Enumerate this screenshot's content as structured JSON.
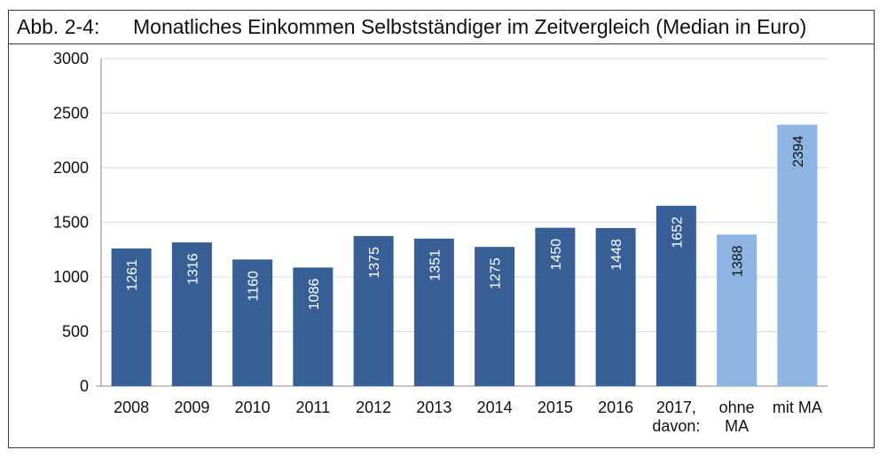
{
  "title_number": "Abb. 2-4:",
  "title_text": "Monatliches Einkommen Selbstständiger im Zeitvergleich (Median in Euro)",
  "colors": {
    "dark_bar": "#375f95",
    "light_bar": "#8db4e3",
    "grid": "#d9d9d9",
    "axis": "#888888"
  },
  "chart_data": {
    "type": "bar",
    "categories": [
      [
        "2008"
      ],
      [
        "2009"
      ],
      [
        "2010"
      ],
      [
        "2011"
      ],
      [
        "2012"
      ],
      [
        "2013"
      ],
      [
        "2014"
      ],
      [
        "2015"
      ],
      [
        "2016"
      ],
      [
        "2017,",
        "davon:"
      ],
      [
        "ohne",
        "MA"
      ],
      [
        "mit MA"
      ]
    ],
    "values": [
      1261,
      1316,
      1160,
      1086,
      1375,
      1351,
      1275,
      1450,
      1448,
      1652,
      1388,
      2394
    ],
    "data_labels": [
      "1261",
      "1316",
      "1160",
      "1086",
      "1375",
      "1351",
      "1275",
      "1450",
      "1448",
      "1652",
      "1388",
      "2394"
    ],
    "bar_color_keys": [
      "dark",
      "dark",
      "dark",
      "dark",
      "dark",
      "dark",
      "dark",
      "dark",
      "dark",
      "dark",
      "light",
      "light"
    ],
    "yticks": [
      "0",
      "500",
      "1000",
      "1500",
      "2000",
      "2500",
      "3000"
    ],
    "ylim": [
      0,
      3000
    ],
    "grid": true,
    "title": "Monatliches Einkommen Selbstständiger im Zeitvergleich (Median in Euro)",
    "xlabel": "",
    "ylabel": ""
  }
}
